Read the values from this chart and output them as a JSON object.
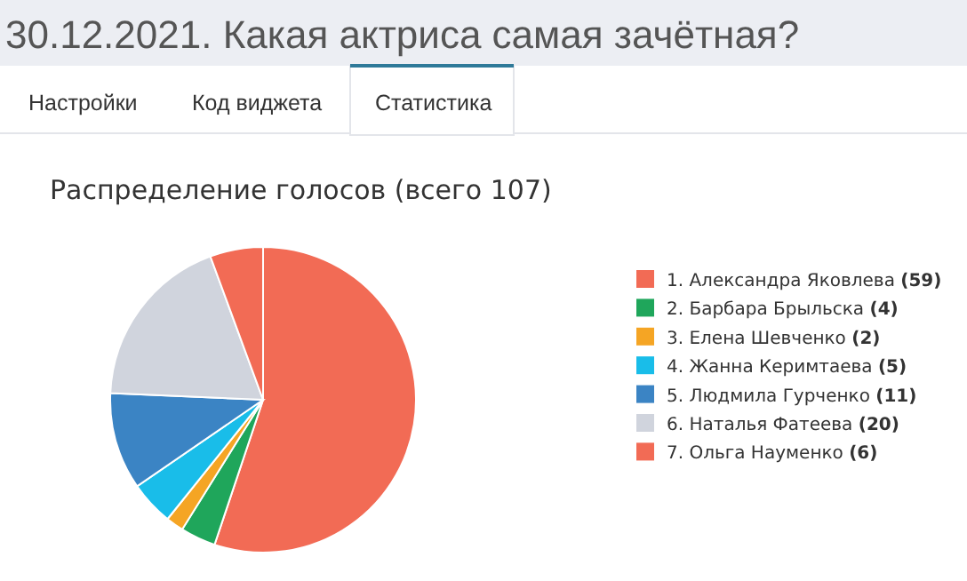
{
  "chart_data": {
    "type": "pie",
    "title": "30.12.2021. Какая актриса самая зачётная?",
    "subtitle": "Распределение голосов (всего 107)",
    "annotations": [
      "Настройки",
      "Код виджета",
      "Статистика"
    ],
    "categories": [
      "1. Александра Яковлева",
      "2. Барбара Брыльска",
      "3. Елена Шевченко",
      "4. Жанна Керимтаева",
      "5. Людмила Гурченко",
      "6. Наталья Фатеева",
      "7. Ольга Науменко"
    ],
    "values": [
      59,
      4,
      2,
      5,
      11,
      20,
      6
    ],
    "value_labels": [
      "(59)",
      "(4)",
      "(2)",
      "(5)",
      "(11)",
      "(20)",
      "(6)"
    ],
    "colors": [
      "#f26b55",
      "#1fa65b",
      "#f5a524",
      "#19bde9",
      "#3b84c4",
      "#d0d4dd",
      "#f26b55"
    ],
    "legend": "right"
  }
}
